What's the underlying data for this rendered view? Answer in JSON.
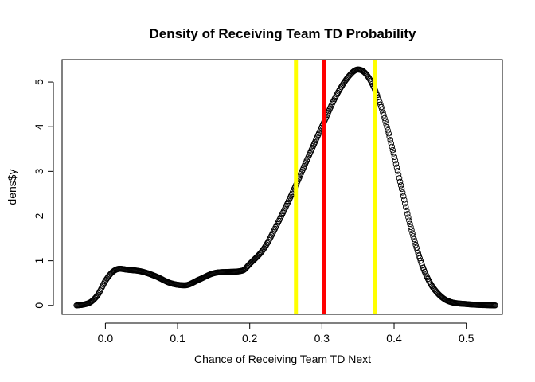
{
  "chart_data": {
    "type": "scatter",
    "title": "Density of Receiving Team TD Probability",
    "xlabel": "Chance of Receiving Team TD Next",
    "ylabel": "dens$y",
    "xlim": [
      -0.06,
      0.55
    ],
    "ylim": [
      -0.2,
      5.5
    ],
    "xticks": [
      0.0,
      0.1,
      0.2,
      0.3,
      0.4,
      0.5
    ],
    "xtick_labels": [
      "0.0",
      "0.1",
      "0.2",
      "0.3",
      "0.4",
      "0.5"
    ],
    "yticks": [
      0,
      1,
      2,
      3,
      4,
      5
    ],
    "ytick_labels": [
      "0",
      "1",
      "2",
      "3",
      "4",
      "5"
    ],
    "grid": false,
    "marker": "open-circle",
    "density_points": {
      "x": [
        -0.04,
        -0.03,
        -0.02,
        -0.01,
        0.0,
        0.01,
        0.02,
        0.03,
        0.05,
        0.07,
        0.09,
        0.11,
        0.13,
        0.15,
        0.17,
        0.19,
        0.2,
        0.22,
        0.24,
        0.26,
        0.28,
        0.3,
        0.32,
        0.34,
        0.35,
        0.36,
        0.37,
        0.38,
        0.39,
        0.4,
        0.41,
        0.42,
        0.43,
        0.44,
        0.45,
        0.46,
        0.47,
        0.48,
        0.5,
        0.52,
        0.54
      ],
      "y": [
        0.0,
        0.02,
        0.08,
        0.25,
        0.55,
        0.75,
        0.82,
        0.8,
        0.76,
        0.65,
        0.5,
        0.45,
        0.58,
        0.72,
        0.75,
        0.78,
        0.93,
        1.28,
        1.88,
        2.55,
        3.28,
        4.0,
        4.7,
        5.18,
        5.28,
        5.2,
        4.95,
        4.55,
        4.0,
        3.35,
        2.65,
        1.95,
        1.35,
        0.85,
        0.5,
        0.28,
        0.14,
        0.07,
        0.03,
        0.01,
        0.0
      ]
    },
    "vertical_lines": [
      {
        "x": 0.264,
        "color": "#ffff00"
      },
      {
        "x": 0.303,
        "color": "#ff0000"
      },
      {
        "x": 0.374,
        "color": "#ffff00"
      }
    ],
    "colors": {
      "points": "#000000",
      "mean_line": "#ff0000",
      "interval_lines": "#ffff00"
    }
  }
}
